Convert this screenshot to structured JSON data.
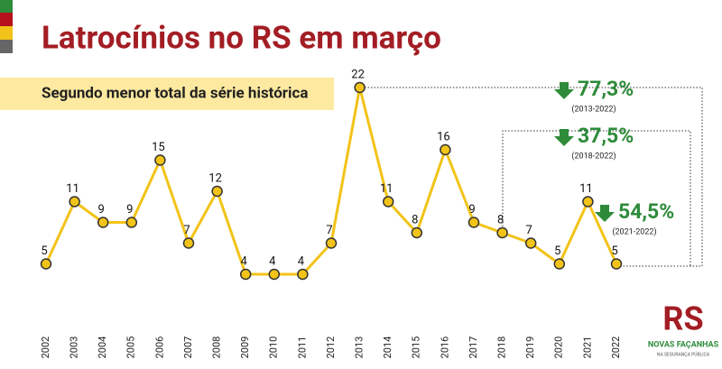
{
  "chart_data": {
    "type": "line",
    "title": "Latrocínios no RS em março",
    "subtitle": "Segundo menor total da série histórica",
    "categories": [
      "2002",
      "2003",
      "2004",
      "2005",
      "2006",
      "2007",
      "2008",
      "2009",
      "2010",
      "2011",
      "2012",
      "2013",
      "2014",
      "2015",
      "2016",
      "2017",
      "2018",
      "2019",
      "2020",
      "2021",
      "2022"
    ],
    "values": [
      5,
      11,
      9,
      9,
      15,
      7,
      12,
      4,
      4,
      4,
      7,
      22,
      11,
      8,
      16,
      9,
      8,
      7,
      5,
      11,
      5
    ],
    "color": "#f2c318",
    "annotations": [
      {
        "label": "77,3%",
        "period": "(2013-2022)"
      },
      {
        "label": "37,5%",
        "period": "(2018-2022)"
      },
      {
        "label": "54,5%",
        "period": "(2021-2022)"
      }
    ]
  },
  "logo": {
    "text": "RS",
    "tagline": "NOVAS FAÇANHAS",
    "subtitle": "NA SEGURANÇA PÚBLICA"
  }
}
